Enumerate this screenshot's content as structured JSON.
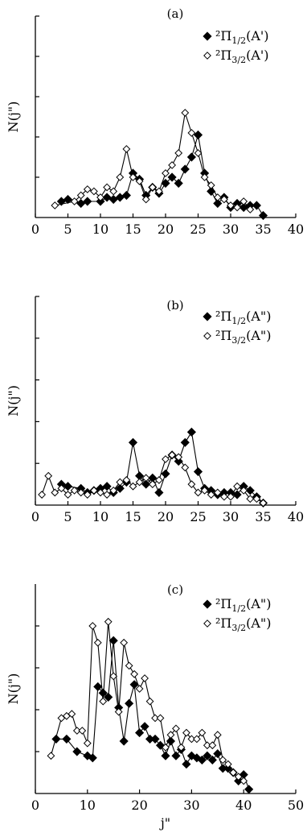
{
  "figure": {
    "xlabel": "j\""
  },
  "chart_data": [
    {
      "type": "line",
      "title": "(a)",
      "xlabel": "",
      "ylabel": "N(j\")",
      "xlim": [
        0,
        40
      ],
      "xticks": [
        0,
        5,
        10,
        15,
        20,
        25,
        30,
        35,
        40
      ],
      "ylim": [
        0,
        1.0
      ],
      "yticks": [
        0.2,
        0.4,
        0.6,
        0.8,
        1.0
      ],
      "legend_position": "top-right",
      "series": [
        {
          "name": "²Π₁/₂(A')",
          "name_main": "²Π",
          "name_sub": "1/2",
          "name_tail": "(A')",
          "marker": "filled-diamond",
          "x": [
            4,
            5,
            7,
            8,
            10,
            11,
            12,
            13,
            14,
            15,
            16,
            17,
            18,
            19,
            20,
            21,
            22,
            23,
            24,
            25,
            26,
            27,
            28,
            29,
            30,
            31,
            32,
            33,
            34,
            35
          ],
          "y": [
            0.08,
            0.09,
            0.07,
            0.08,
            0.08,
            0.1,
            0.09,
            0.1,
            0.11,
            0.22,
            0.19,
            0.11,
            0.15,
            0.12,
            0.17,
            0.2,
            0.17,
            0.24,
            0.3,
            0.41,
            0.22,
            0.13,
            0.07,
            0.1,
            0.05,
            0.07,
            0.05,
            0.06,
            0.06,
            0.01
          ]
        },
        {
          "name": "²Π₃/₂(A')",
          "name_main": "²Π",
          "name_sub": "3/2",
          "name_tail": "(A')",
          "marker": "open-diamond",
          "x": [
            3,
            6,
            7,
            8,
            9,
            10,
            11,
            12,
            13,
            14,
            15,
            16,
            17,
            18,
            19,
            20,
            21,
            22,
            23,
            24,
            25,
            26,
            27,
            28,
            29,
            30,
            31,
            32,
            33
          ],
          "y": [
            0.06,
            0.08,
            0.11,
            0.14,
            0.13,
            0.1,
            0.15,
            0.13,
            0.2,
            0.34,
            0.2,
            0.18,
            0.09,
            0.15,
            0.13,
            0.22,
            0.26,
            0.32,
            0.52,
            0.42,
            0.32,
            0.2,
            0.16,
            0.1,
            0.09,
            0.06,
            0.05,
            0.08,
            0.04
          ]
        }
      ]
    },
    {
      "type": "line",
      "title": "(b)",
      "xlabel": "",
      "ylabel": "N(j\")",
      "xlim": [
        0,
        40
      ],
      "xticks": [
        0,
        5,
        10,
        15,
        20,
        25,
        30,
        35,
        40
      ],
      "ylim": [
        0,
        1.0
      ],
      "yticks": [
        0.2,
        0.4,
        0.6,
        0.8,
        1.0
      ],
      "legend_position": "top-right",
      "series": [
        {
          "name": "²Π₁/₂(A\")",
          "name_main": "²Π",
          "name_sub": "1/2",
          "name_tail": "(A\")",
          "marker": "filled-diamond",
          "x": [
            4,
            5,
            7,
            8,
            9,
            10,
            11,
            12,
            13,
            14,
            15,
            16,
            17,
            18,
            19,
            20,
            21,
            22,
            23,
            24,
            25,
            26,
            27,
            28,
            29,
            30,
            31,
            32,
            33,
            34,
            35
          ],
          "y": [
            0.1,
            0.09,
            0.08,
            0.06,
            0.07,
            0.08,
            0.09,
            0.06,
            0.08,
            0.11,
            0.3,
            0.14,
            0.1,
            0.13,
            0.06,
            0.15,
            0.24,
            0.21,
            0.3,
            0.35,
            0.16,
            0.08,
            0.07,
            0.05,
            0.06,
            0.06,
            0.05,
            0.09,
            0.07,
            0.04,
            0.01
          ]
        },
        {
          "name": "²Π₃/₂(A\")",
          "name_main": "²Π",
          "name_sub": "3/2",
          "name_tail": "(A\")",
          "marker": "open-diamond",
          "x": [
            1,
            2,
            3,
            4,
            5,
            6,
            7,
            8,
            9,
            10,
            11,
            12,
            13,
            14,
            15,
            16,
            17,
            18,
            19,
            20,
            21,
            22,
            23,
            24,
            25,
            26,
            27,
            28,
            29,
            30,
            31,
            32,
            33,
            34,
            35
          ],
          "y": [
            0.05,
            0.14,
            0.06,
            0.08,
            0.05,
            0.07,
            0.06,
            0.05,
            0.07,
            0.06,
            0.05,
            0.07,
            0.11,
            0.12,
            0.09,
            0.11,
            0.13,
            0.1,
            0.12,
            0.22,
            0.24,
            0.23,
            0.18,
            0.1,
            0.06,
            0.07,
            0.05,
            0.06,
            0.04,
            0.04,
            0.09,
            0.07,
            0.03,
            0.03,
            0.01
          ]
        }
      ]
    },
    {
      "type": "line",
      "title": "(c)",
      "xlabel": "j\"",
      "ylabel": "N(j\")",
      "xlim": [
        0,
        50
      ],
      "xticks": [
        0,
        10,
        20,
        30,
        40,
        50
      ],
      "ylim": [
        0,
        1.0
      ],
      "yticks": [
        0.2,
        0.4,
        0.6,
        0.8
      ],
      "legend_position": "top-right",
      "series": [
        {
          "name": "²Π₁/₂(A\")",
          "name_main": "²Π",
          "name_sub": "1/2",
          "name_tail": "(A\")",
          "marker": "filled-diamond",
          "x": [
            4,
            6,
            8,
            10,
            11,
            12,
            13,
            14,
            15,
            16,
            17,
            18,
            19,
            20,
            21,
            22,
            23,
            24,
            25,
            26,
            27,
            28,
            29,
            30,
            31,
            32,
            33,
            34,
            35,
            36,
            37,
            38,
            39,
            40,
            41
          ],
          "y": [
            0.26,
            0.26,
            0.2,
            0.18,
            0.17,
            0.51,
            0.48,
            0.46,
            0.73,
            0.41,
            0.25,
            0.43,
            0.52,
            0.29,
            0.32,
            0.26,
            0.26,
            0.23,
            0.18,
            0.25,
            0.18,
            0.21,
            0.14,
            0.18,
            0.17,
            0.16,
            0.18,
            0.16,
            0.19,
            0.12,
            0.12,
            0.1,
            0.06,
            0.09,
            0.02
          ]
        },
        {
          "name": "²Π₃/₂(A\")",
          "name_main": "²Π",
          "name_sub": "3/2",
          "name_tail": "(A\")",
          "marker": "open-diamond",
          "x": [
            3,
            5,
            6,
            7,
            8,
            9,
            10,
            11,
            12,
            13,
            14,
            15,
            16,
            17,
            18,
            19,
            20,
            21,
            22,
            23,
            24,
            25,
            26,
            27,
            28,
            29,
            30,
            31,
            32,
            33,
            34,
            35,
            36,
            37,
            38,
            39,
            40
          ],
          "y": [
            0.18,
            0.36,
            0.37,
            0.38,
            0.3,
            0.3,
            0.24,
            0.8,
            0.72,
            0.44,
            0.82,
            0.56,
            0.39,
            0.72,
            0.61,
            0.57,
            0.5,
            0.55,
            0.44,
            0.36,
            0.36,
            0.22,
            0.28,
            0.31,
            0.22,
            0.29,
            0.26,
            0.26,
            0.29,
            0.23,
            0.23,
            0.28,
            0.16,
            0.14,
            0.1,
            0.08,
            0.06
          ]
        }
      ]
    }
  ]
}
